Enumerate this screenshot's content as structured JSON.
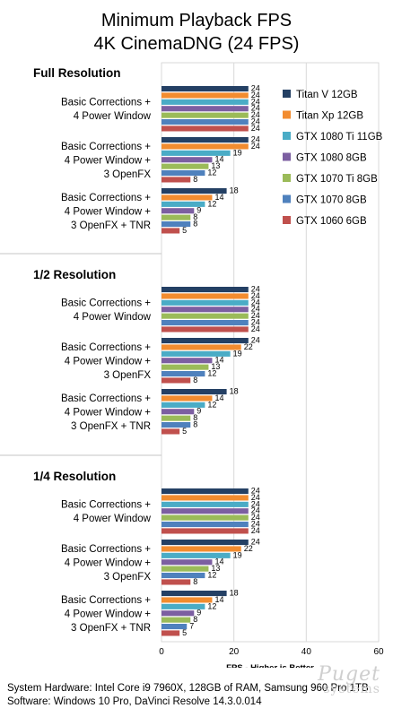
{
  "chart_data": {
    "type": "bar",
    "orientation": "horizontal",
    "title": [
      "Minimum Playback FPS",
      "4K CinemaDNG (24 FPS)"
    ],
    "xlabel": "FPS - Higher is Better",
    "xlim": [
      0,
      60
    ],
    "xticks": [
      0,
      20,
      40,
      60
    ],
    "grid": true,
    "legend_position": "right",
    "series": [
      {
        "name": "Titan V 12GB",
        "color": "#244064"
      },
      {
        "name": "Titan Xp 12GB",
        "color": "#f28c2f"
      },
      {
        "name": "GTX 1080 Ti 11GB",
        "color": "#4aacc6"
      },
      {
        "name": "GTX 1080 8GB",
        "color": "#7c5fa1"
      },
      {
        "name": "GTX 1070 Ti 8GB",
        "color": "#9bbb59"
      },
      {
        "name": "GTX 1070 8GB",
        "color": "#4f81bd"
      },
      {
        "name": "GTX 1060 6GB",
        "color": "#c0504d"
      }
    ],
    "sections": [
      {
        "name": "Full Resolution",
        "groups": [
          {
            "label": [
              "Basic Corrections +",
              "4 Power Window"
            ],
            "values": [
              24,
              24,
              24,
              24,
              24,
              24,
              24
            ]
          },
          {
            "label": [
              "Basic Corrections +",
              "4 Power Window +",
              "3 OpenFX"
            ],
            "values": [
              24,
              24,
              19,
              14,
              13,
              12,
              8
            ]
          },
          {
            "label": [
              "Basic Corrections +",
              "4 Power Window +",
              "3 OpenFX + TNR"
            ],
            "values": [
              18,
              14,
              12,
              9,
              8,
              8,
              5
            ]
          }
        ]
      },
      {
        "name": "1/2 Resolution",
        "groups": [
          {
            "label": [
              "Basic Corrections +",
              "4 Power Window"
            ],
            "values": [
              24,
              24,
              24,
              24,
              24,
              24,
              24
            ]
          },
          {
            "label": [
              "Basic Corrections +",
              "4 Power Window +",
              "3 OpenFX"
            ],
            "values": [
              24,
              22,
              19,
              14,
              13,
              12,
              8
            ]
          },
          {
            "label": [
              "Basic Corrections +",
              "4 Power Window +",
              "3 OpenFX + TNR"
            ],
            "values": [
              18,
              14,
              12,
              9,
              8,
              8,
              5
            ]
          }
        ]
      },
      {
        "name": "1/4 Resolution",
        "groups": [
          {
            "label": [
              "Basic Corrections +",
              "4 Power Window"
            ],
            "values": [
              24,
              24,
              24,
              24,
              24,
              24,
              24
            ]
          },
          {
            "label": [
              "Basic Corrections +",
              "4 Power Window +",
              "3 OpenFX"
            ],
            "values": [
              24,
              22,
              19,
              14,
              13,
              12,
              8
            ]
          },
          {
            "label": [
              "Basic Corrections +",
              "4 Power Window +",
              "3 OpenFX + TNR"
            ],
            "values": [
              18,
              14,
              12,
              9,
              8,
              7,
              5
            ]
          }
        ]
      }
    ]
  },
  "footer": {
    "hardware": "System Hardware: Intel Core i9 7960X,  128GB of RAM, Samsung 960 Pro 1TB",
    "software": "Software: Windows 10 Pro, DaVinci Resolve 14.3.0.014"
  },
  "watermark": {
    "line1": "Puget",
    "line2": "systems"
  }
}
